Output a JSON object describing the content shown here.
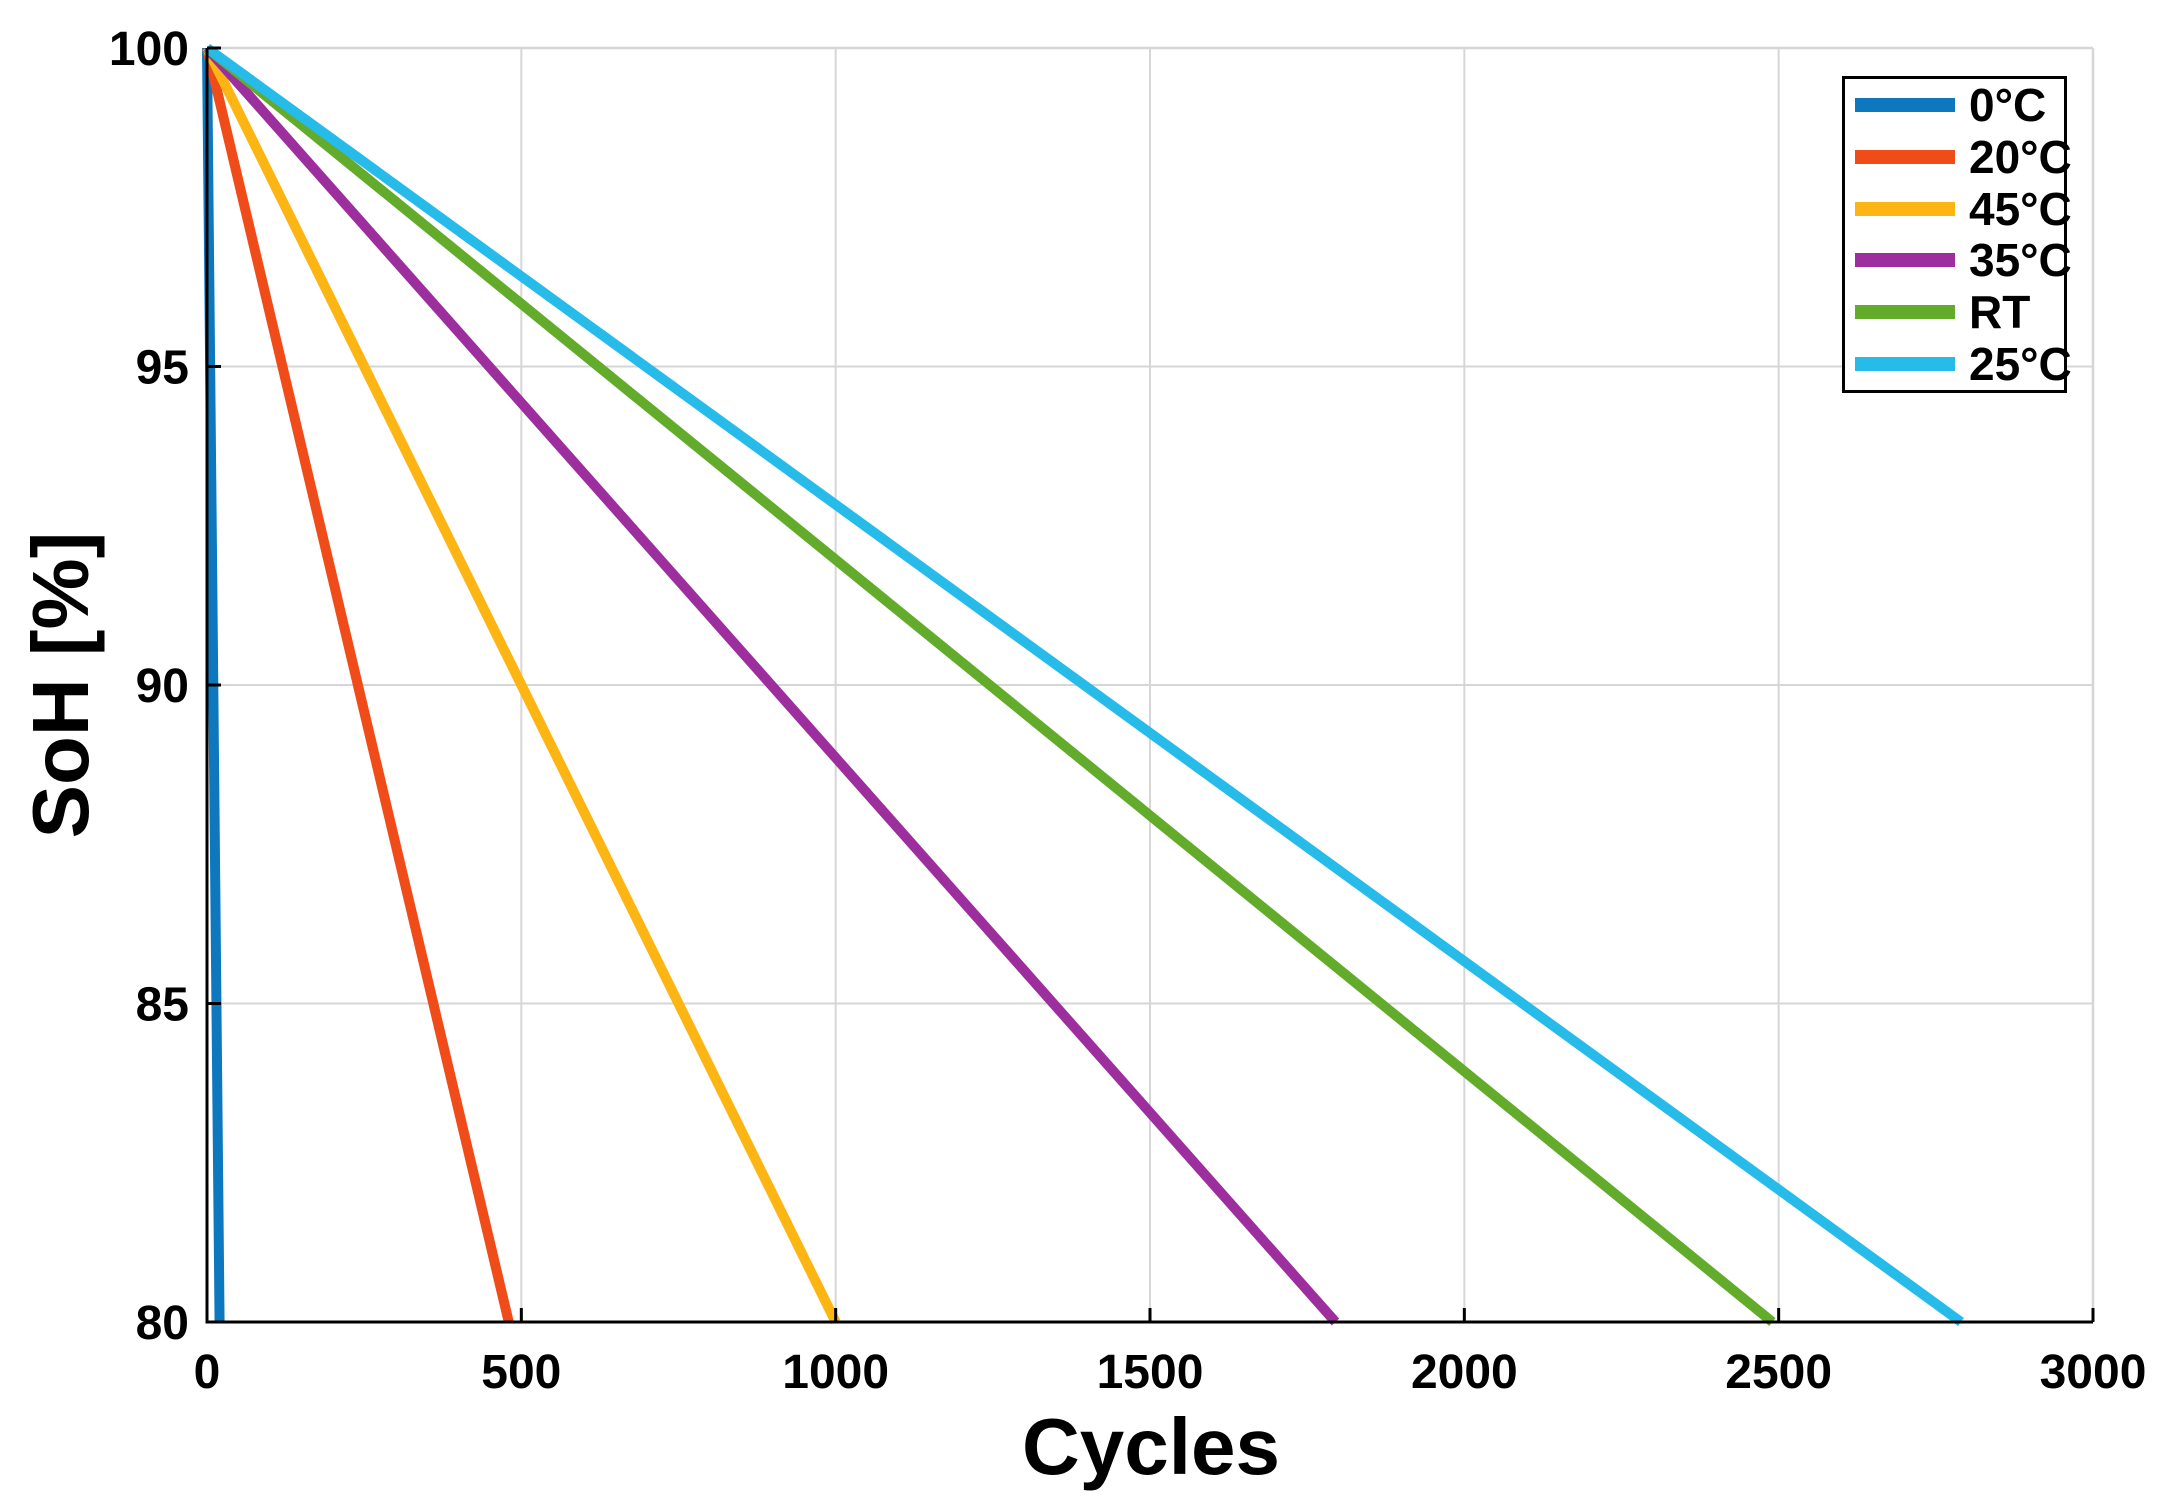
{
  "chart_data": {
    "type": "line",
    "title": "",
    "xlabel": "Cycles",
    "ylabel": "SoH [%]",
    "xlim": [
      0,
      3000
    ],
    "ylim": [
      80,
      100
    ],
    "xticks": [
      0,
      500,
      1000,
      1500,
      2000,
      2500,
      3000
    ],
    "yticks": [
      80,
      85,
      90,
      95,
      100
    ],
    "grid": true,
    "legend_position": "top-right",
    "legend_border_color": "#000000",
    "grid_color": "#d6d6d6",
    "axis_color": "#000000",
    "tick_label_color": "#000000",
    "line_width": 10,
    "series": [
      {
        "name": "0°C",
        "color": "#0e78be",
        "points": [
          [
            0,
            100
          ],
          [
            20,
            80
          ]
        ]
      },
      {
        "name": "20°C",
        "color": "#ef4c1a",
        "points": [
          [
            0,
            100
          ],
          [
            480,
            80
          ]
        ]
      },
      {
        "name": "45°C",
        "color": "#fdb513",
        "points": [
          [
            0,
            100
          ],
          [
            1000,
            80
          ]
        ]
      },
      {
        "name": "35°C",
        "color": "#9c2e9e",
        "points": [
          [
            0,
            100
          ],
          [
            1795,
            80
          ]
        ]
      },
      {
        "name": "RT",
        "color": "#63ab2a",
        "points": [
          [
            0,
            100
          ],
          [
            2490,
            80
          ]
        ]
      },
      {
        "name": "25°C",
        "color": "#27bbea",
        "points": [
          [
            0,
            100
          ],
          [
            2790,
            80
          ]
        ]
      }
    ]
  }
}
